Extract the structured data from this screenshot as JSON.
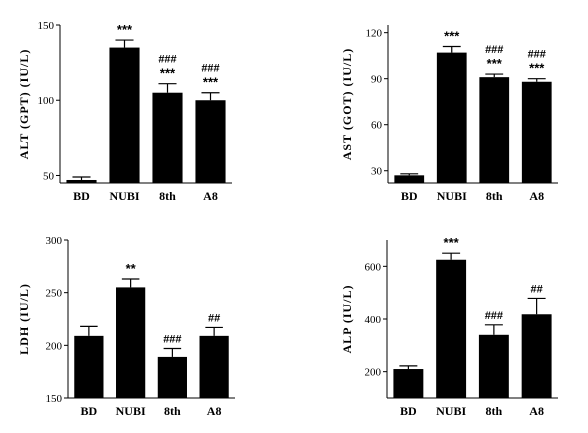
{
  "chart_data": [
    {
      "type": "bar",
      "ylabel": "ALT (GPT) (IU/L)",
      "categories": [
        "BD",
        "NUBI",
        "8th",
        "A8"
      ],
      "values": [
        47,
        135,
        105,
        100
      ],
      "errors": [
        2,
        5,
        6,
        5
      ],
      "ylim": [
        45,
        150
      ],
      "yticks": [
        "50",
        "100",
        "150"
      ],
      "annotations": [
        {
          "category": "NUBI",
          "lines": [
            "***"
          ]
        },
        {
          "category": "8th",
          "lines": [
            "###",
            "***"
          ]
        },
        {
          "category": "A8",
          "lines": [
            "###",
            "***"
          ]
        }
      ],
      "bar_color": "#000000"
    },
    {
      "type": "bar",
      "ylabel": "AST (GOT) (IU/L)",
      "categories": [
        "BD",
        "NUBI",
        "8th",
        "A8"
      ],
      "values": [
        27,
        107,
        91,
        88
      ],
      "errors": [
        1,
        4,
        2,
        2
      ],
      "ylim": [
        22,
        125
      ],
      "yticks": [
        "30",
        "60",
        "90",
        "120"
      ],
      "annotations": [
        {
          "category": "NUBI",
          "lines": [
            "***"
          ]
        },
        {
          "category": "8th",
          "lines": [
            "###",
            "***"
          ]
        },
        {
          "category": "A8",
          "lines": [
            "###",
            "***"
          ]
        }
      ],
      "bar_color": "#000000"
    },
    {
      "type": "bar",
      "ylabel": "LDH (IU/L)",
      "categories": [
        "BD",
        "NUBI",
        "8th",
        "A8"
      ],
      "values": [
        209,
        255,
        189,
        209
      ],
      "errors": [
        9,
        8,
        8,
        8
      ],
      "ylim": [
        150,
        300
      ],
      "yticks": [
        "150",
        "200",
        "250",
        "300"
      ],
      "annotations": [
        {
          "category": "NUBI",
          "lines": [
            "**"
          ]
        },
        {
          "category": "8th",
          "lines": [
            "###"
          ]
        },
        {
          "category": "A8",
          "lines": [
            "##"
          ]
        }
      ],
      "bar_color": "#000000"
    },
    {
      "type": "bar",
      "ylabel": "ALP (IU/L)",
      "categories": [
        "BD",
        "NUBI",
        "8th",
        "A8"
      ],
      "values": [
        210,
        625,
        340,
        418
      ],
      "errors": [
        12,
        25,
        38,
        60
      ],
      "ylim": [
        100,
        700
      ],
      "yticks": [
        "200",
        "400",
        "600"
      ],
      "annotations": [
        {
          "category": "NUBI",
          "lines": [
            "***"
          ]
        },
        {
          "category": "8th",
          "lines": [
            "###"
          ]
        },
        {
          "category": "A8",
          "lines": [
            "##"
          ]
        }
      ],
      "bar_color": "#000000"
    }
  ]
}
